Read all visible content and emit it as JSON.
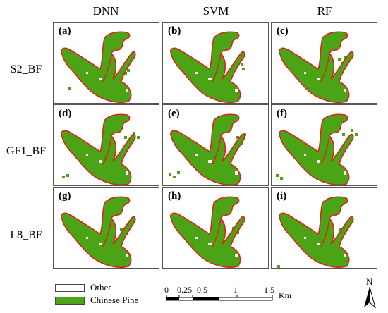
{
  "columns": [
    "DNN",
    "SVM",
    "RF"
  ],
  "rows": [
    "S2_BF",
    "GF1_BF",
    "L8_BF"
  ],
  "panels": [
    "(a)",
    "(b)",
    "(c)",
    "(d)",
    "(e)",
    "(f)",
    "(g)",
    "(h)",
    "(i)"
  ],
  "legend": {
    "other": {
      "label": "Other",
      "color": "#ffffff"
    },
    "pine": {
      "label": "Chinese Pine",
      "color": "#4aa416"
    }
  },
  "boundary_color": "#e0201b",
  "scale_bar": {
    "labels": [
      "0",
      "0.25",
      "0.5",
      "1",
      "1.5"
    ],
    "unit": "Km"
  },
  "north": {
    "label": "N"
  }
}
